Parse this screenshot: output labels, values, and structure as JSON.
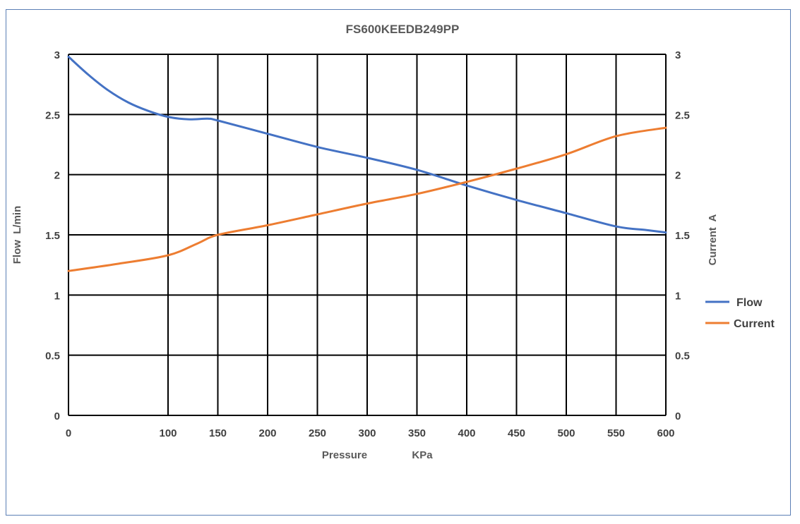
{
  "chart_data": {
    "type": "line",
    "title": "FS600KEEDB249PP",
    "xlabel": "Pressure",
    "xunit": "KPa",
    "ylabel_left": "Flow  L/min",
    "ylabel_right": "Current  A",
    "xlim": [
      0,
      600
    ],
    "ylim": [
      0,
      3
    ],
    "x_ticks": [
      "0",
      "100",
      "150",
      "200",
      "250",
      "300",
      "350",
      "400",
      "450",
      "500",
      "550",
      "600"
    ],
    "x_tick_values": [
      0,
      100,
      150,
      200,
      250,
      300,
      350,
      400,
      450,
      500,
      550,
      600
    ],
    "y_ticks": [
      "0",
      "0.5",
      "1",
      "1.5",
      "2",
      "2.5",
      "3"
    ],
    "y_tick_values": [
      0,
      0.5,
      1,
      1.5,
      2,
      2.5,
      3
    ],
    "grid": true,
    "legend_position": "right",
    "series": [
      {
        "name": "Flow",
        "color": "#4472c4",
        "x": [
          0,
          20,
          40,
          60,
          80,
          100,
          120,
          140,
          150,
          200,
          250,
          300,
          350,
          400,
          450,
          500,
          550,
          580,
          600
        ],
        "y": [
          2.98,
          2.83,
          2.7,
          2.6,
          2.53,
          2.48,
          2.46,
          2.465,
          2.45,
          2.34,
          2.23,
          2.14,
          2.04,
          1.91,
          1.79,
          1.68,
          1.57,
          1.54,
          1.52
        ]
      },
      {
        "name": "Current",
        "color": "#ed7d31",
        "x": [
          0,
          50,
          100,
          130,
          150,
          200,
          250,
          300,
          350,
          400,
          450,
          500,
          550,
          600
        ],
        "y": [
          1.2,
          1.26,
          1.33,
          1.43,
          1.5,
          1.58,
          1.67,
          1.76,
          1.84,
          1.94,
          2.05,
          2.17,
          2.32,
          2.39
        ]
      }
    ]
  }
}
